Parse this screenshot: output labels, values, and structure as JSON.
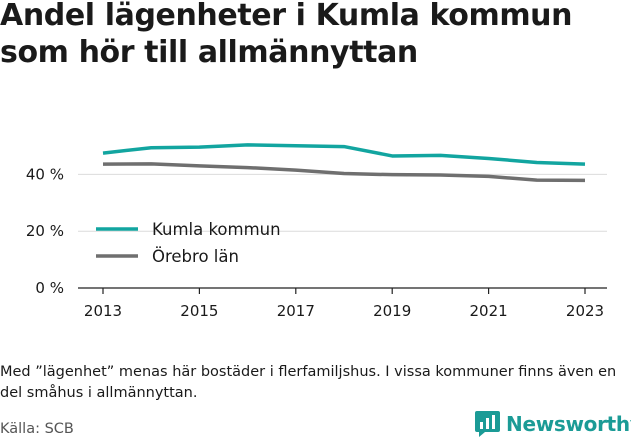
{
  "header": {
    "title_line1": "Andel lägenheter i Kumla kommun",
    "title_line2": "som hör till allmännyttan"
  },
  "footer": {
    "note": "Med ”lägenhet” menas här bostäder i flerfamiljshus. I vissa kommuner finns även en del småhus i allmännyttan.",
    "source": "Källa: SCB",
    "brand": "Newsworthy"
  },
  "colors": {
    "kumla": "#12a5a0",
    "orebro": "#6f6f6f",
    "grid": "#dcdcdc",
    "axis": "#222222",
    "brand": "#1b9b96"
  },
  "chart_data": {
    "type": "line",
    "title": "Andel lägenheter i Kumla kommun som hör till allmännyttan",
    "xlabel": "",
    "ylabel": "",
    "x": [
      2013,
      2014,
      2015,
      2016,
      2017,
      2018,
      2019,
      2020,
      2021,
      2022,
      2023
    ],
    "x_tick_labels": [
      "2013",
      "2015",
      "2017",
      "2019",
      "2021",
      "2023"
    ],
    "y_tick_labels": [
      "0 %",
      "20 %",
      "40 %"
    ],
    "ylim": [
      0,
      52
    ],
    "grid": true,
    "legend_position": "lower-left",
    "series": [
      {
        "name": "Kumla kommun",
        "color": "#12a5a0",
        "values": [
          47.5,
          49.4,
          49.6,
          50.4,
          50.1,
          49.8,
          46.5,
          46.7,
          45.6,
          44.2,
          43.6
        ]
      },
      {
        "name": "Örebro län",
        "color": "#6f6f6f",
        "values": [
          43.6,
          43.7,
          43.0,
          42.4,
          41.5,
          40.3,
          39.9,
          39.8,
          39.3,
          38.0,
          37.9
        ]
      }
    ]
  }
}
